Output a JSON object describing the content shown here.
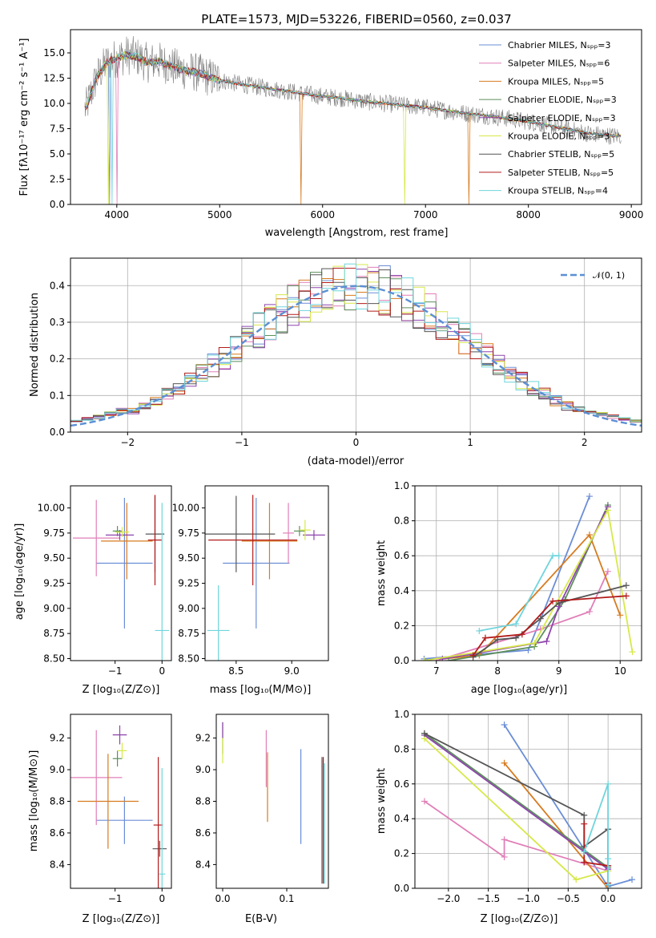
{
  "palette": [
    "#6b8ed6",
    "#e07fb8",
    "#d77b1f",
    "#5c8f5c",
    "#8e44ad",
    "#d7e84a",
    "#555555",
    "#b31b1b",
    "#6fd5dc"
  ],
  "chart_data": [
    {
      "id": "spectrum",
      "type": "line",
      "title": "PLATE=1573, MJD=53226, FIBERID=0560, z=0.037",
      "xlabel": "wavelength [Angstrom, rest frame]",
      "ylabel": "Flux [fλ10⁻¹⁷ erg cm⁻² s⁻¹ A⁻¹]",
      "xlim": [
        3550,
        9100
      ],
      "ylim": [
        0,
        17.3
      ],
      "xticks": [
        "4000",
        "5000",
        "6000",
        "7000",
        "8000",
        "9000"
      ],
      "yticks": [
        "0.0",
        "2.5",
        "5.0",
        "7.5",
        "10.0",
        "12.5",
        "15.0"
      ],
      "data_x": [
        3700,
        3800,
        3900,
        4000,
        4100,
        4200,
        4300,
        4400,
        4500,
        4600,
        4700,
        4800,
        4900,
        5000,
        5200,
        5400,
        5600,
        5800,
        6000,
        6200,
        6400,
        6600,
        6800,
        7000,
        7200,
        7400,
        7600,
        7800,
        8000,
        8200,
        8400,
        8600,
        8800
      ],
      "data_y": [
        9.5,
        12.5,
        14.0,
        14.5,
        14.8,
        14.6,
        14.0,
        14.2,
        13.8,
        13.4,
        13.2,
        13.0,
        12.6,
        12.3,
        11.9,
        11.6,
        11.3,
        11.0,
        10.7,
        10.5,
        10.2,
        10.0,
        9.8,
        9.6,
        9.3,
        9.0,
        8.8,
        8.5,
        8.2,
        7.8,
        7.4,
        7.0,
        6.8
      ],
      "series": [
        {
          "name": "Chabrier MILES, Nₛₚₚ=3"
        },
        {
          "name": "Salpeter MILES, Nₛₚₚ=6"
        },
        {
          "name": "Kroupa MILES, Nₛₚₚ=5"
        },
        {
          "name": "Chabrier ELODIE, Nₛₚₚ=3"
        },
        {
          "name": "Salpeter ELODIE, Nₛₚₚ=3"
        },
        {
          "name": "Kroupa ELODIE, Nₛₚₚ=3"
        },
        {
          "name": "Chabrier STELIB, Nₛₚₚ=5"
        },
        {
          "name": "Salpeter STELIB, Nₛₚₚ=5"
        },
        {
          "name": "Kroupa STELIB, Nₛₚₚ=4"
        }
      ],
      "legend": "top-right"
    },
    {
      "id": "residuals",
      "type": "line",
      "xlabel": "(data-model)/error",
      "ylabel": "Normed distribution",
      "xlim": [
        -2.5,
        2.5
      ],
      "ylim": [
        0,
        0.475
      ],
      "xticks": [
        "−2",
        "−1",
        "0",
        "1",
        "2"
      ],
      "yticks": [
        "0.0",
        "0.1",
        "0.2",
        "0.3",
        "0.4"
      ],
      "legend_entry": "𝒩(0, 1)",
      "gaussian": {
        "mu": 0,
        "sigma": 1
      },
      "grid": true
    },
    {
      "id": "age_vs_Z",
      "type": "scatter",
      "xlabel": "Z [log₁₀(Z/Z⊙)]",
      "ylabel": "age  [log₁₀(age/yr)]",
      "xlim": [
        -1.95,
        0.2
      ],
      "ylim": [
        8.48,
        10.22
      ],
      "xticks": [
        "−1",
        "0"
      ],
      "yticks": [
        "8.50",
        "8.75",
        "9.00",
        "9.25",
        "9.50",
        "9.75",
        "10.00"
      ],
      "points": [
        {
          "x": -0.8,
          "y": 9.45,
          "xerr": 0.6,
          "yerr": 0.65
        },
        {
          "x": -1.4,
          "y": 9.7,
          "xerr": 0.5,
          "yerr": 0.38
        },
        {
          "x": -0.75,
          "y": 9.67,
          "xerr": 0.55,
          "yerr": 0.38
        },
        {
          "x": -0.95,
          "y": 9.77,
          "xerr": 0.1,
          "yerr": 0.05
        },
        {
          "x": -0.9,
          "y": 9.73,
          "xerr": 0.3,
          "yerr": 0.05
        },
        {
          "x": -0.85,
          "y": 9.76,
          "xerr": 0.15,
          "yerr": 0.05
        },
        {
          "x": -0.15,
          "y": 9.74,
          "xerr": 0.2,
          "yerr": 0.38
        },
        {
          "x": -0.15,
          "y": 9.68,
          "xerr": 0.15,
          "yerr": 0.45
        },
        {
          "x": 0.0,
          "y": 8.78,
          "xerr": 0.15,
          "yerr": 1.27
        }
      ]
    },
    {
      "id": "age_vs_mass",
      "type": "scatter",
      "xlabel": "mass [log₁₀(M/M⊙)]",
      "ylabel": "",
      "xlim": [
        8.22,
        9.33
      ],
      "ylim": [
        8.48,
        10.22
      ],
      "xticks": [
        "8.5",
        "9.0"
      ],
      "yticks": [
        "8.50",
        "8.75",
        "9.00",
        "9.25",
        "9.50",
        "9.75",
        "10.00"
      ],
      "points": [
        {
          "x": 8.68,
          "y": 9.45,
          "xerr": 0.3,
          "yerr": 0.65
        },
        {
          "x": 8.97,
          "y": 9.75,
          "xerr": 0.05,
          "yerr": 0.3
        },
        {
          "x": 8.8,
          "y": 9.67,
          "xerr": 0.25,
          "yerr": 0.38
        },
        {
          "x": 9.07,
          "y": 9.77,
          "xerr": 0.05,
          "yerr": 0.05
        },
        {
          "x": 9.2,
          "y": 9.73,
          "xerr": 0.1,
          "yerr": 0.05
        },
        {
          "x": 9.12,
          "y": 9.78,
          "xerr": 0.05,
          "yerr": 0.1
        },
        {
          "x": 8.5,
          "y": 9.74,
          "xerr": 0.35,
          "yerr": 0.38
        },
        {
          "x": 8.65,
          "y": 9.68,
          "xerr": 0.4,
          "yerr": 0.45
        },
        {
          "x": 8.34,
          "y": 8.78,
          "xerr": 0.1,
          "yerr": 0.45
        }
      ]
    },
    {
      "id": "weight_vs_age",
      "type": "line",
      "xlabel": "age  [log₁₀(age/yr)]",
      "ylabel": "mass weight",
      "xlim": [
        6.65,
        10.35
      ],
      "ylim": [
        0,
        1
      ],
      "xticks": [
        "7",
        "8",
        "9",
        "10"
      ],
      "yticks": [
        "0.0",
        "0.2",
        "0.4",
        "0.6",
        "0.8",
        "1.0"
      ],
      "grid": true,
      "series": [
        {
          "x": [
            6.8,
            8.5,
            9.5
          ],
          "y": [
            0.01,
            0.06,
            0.94
          ]
        },
        {
          "x": [
            7.0,
            8.7,
            9.5,
            9.8
          ],
          "y": [
            0.0,
            0.18,
            0.28,
            0.51
          ]
        },
        {
          "x": [
            7.1,
            7.7,
            9.5,
            10.0
          ],
          "y": [
            0.01,
            0.03,
            0.72,
            0.26
          ]
        },
        {
          "x": [
            7.2,
            8.6,
            9.1,
            9.8
          ],
          "y": [
            0.0,
            0.08,
            0.35,
            0.89
          ]
        },
        {
          "x": [
            7.1,
            8.8,
            9.0,
            9.8
          ],
          "y": [
            0.01,
            0.11,
            0.31,
            0.88
          ]
        },
        {
          "x": [
            6.8,
            8.6,
            9.8,
            10.2
          ],
          "y": [
            0.0,
            0.1,
            0.86,
            0.05
          ]
        },
        {
          "x": [
            7.6,
            8.0,
            8.3,
            8.7,
            9.0,
            10.1
          ],
          "y": [
            0.02,
            0.12,
            0.13,
            0.24,
            0.33,
            0.43
          ]
        },
        {
          "x": [
            7.6,
            7.8,
            8.4,
            8.9,
            10.1
          ],
          "y": [
            0.03,
            0.13,
            0.15,
            0.34,
            0.37
          ]
        },
        {
          "x": [
            7.7,
            8.3,
            8.9,
            9.0
          ],
          "y": [
            0.17,
            0.21,
            0.6,
            0.6
          ]
        }
      ]
    },
    {
      "id": "mass_vs_Z",
      "type": "scatter",
      "xlabel": "Z [log₁₀(Z/Z⊙)]",
      "ylabel": "mass [log₁₀(M/M⊙)]",
      "xlim": [
        -1.95,
        0.2
      ],
      "ylim": [
        8.25,
        9.35
      ],
      "xticks": [
        "−1",
        "0"
      ],
      "yticks": [
        "8.4",
        "8.6",
        "8.8",
        "9.0",
        "9.2"
      ],
      "points": [
        {
          "x": -0.8,
          "y": 8.68,
          "xerr": 0.6,
          "yerr": 0.15
        },
        {
          "x": -1.4,
          "y": 8.95,
          "xerr": 0.55,
          "yerr": 0.3
        },
        {
          "x": -1.15,
          "y": 8.8,
          "xerr": 0.65,
          "yerr": 0.3
        },
        {
          "x": -0.95,
          "y": 9.07,
          "xerr": 0.1,
          "yerr": 0.05
        },
        {
          "x": -0.9,
          "y": 9.22,
          "xerr": 0.15,
          "yerr": 0.06
        },
        {
          "x": -0.85,
          "y": 9.12,
          "xerr": 0.1,
          "yerr": 0.05
        },
        {
          "x": -0.05,
          "y": 8.5,
          "xerr": 0.15,
          "yerr": 0.05
        },
        {
          "x": -0.08,
          "y": 8.65,
          "xerr": 0.1,
          "yerr": 0.43
        },
        {
          "x": 0.0,
          "y": 8.34,
          "xerr": 0.07,
          "yerr": 0.67
        }
      ]
    },
    {
      "id": "mass_vs_ebv",
      "type": "scatter",
      "xlabel": "E(B-V)",
      "ylabel": "",
      "xlim": [
        -0.01,
        0.165
      ],
      "ylim": [
        8.25,
        9.35
      ],
      "xticks": [
        "0.0",
        "0.1"
      ],
      "yticks": [
        "8.4",
        "8.6",
        "8.8",
        "9.0",
        "9.2"
      ],
      "points": [
        {
          "x": 0.122,
          "y": 8.83,
          "yerr": 0.3
        },
        {
          "x": 0.068,
          "y": 9.07,
          "yerr": 0.18
        },
        {
          "x": 0.07,
          "y": 8.89,
          "yerr": 0.22
        },
        {
          "x": 0.0,
          "y": 9.2,
          "yerr": 0.1
        },
        {
          "x": 0.0,
          "y": 9.25,
          "yerr": 0.05
        },
        {
          "x": 0.0,
          "y": 9.12,
          "yerr": 0.08
        },
        {
          "x": 0.155,
          "y": 8.68,
          "yerr": 0.4
        },
        {
          "x": 0.157,
          "y": 8.68,
          "yerr": 0.4
        },
        {
          "x": 0.159,
          "y": 8.66,
          "yerr": 0.38
        }
      ]
    },
    {
      "id": "weight_vs_Z",
      "type": "line",
      "xlabel": "Z [log₁₀(Z/Z⊙)]",
      "ylabel": "mass weight",
      "xlim": [
        -2.42,
        0.42
      ],
      "ylim": [
        0,
        1
      ],
      "xticks": [
        "−2.0",
        "−1.5",
        "−1.0",
        "−0.5",
        "0.0"
      ],
      "yticks": [
        "0.0",
        "0.2",
        "0.4",
        "0.6",
        "0.8",
        "1.0"
      ],
      "grid": true,
      "series": [
        {
          "x": [
            -1.3,
            0.0,
            0.3
          ],
          "y": [
            0.94,
            0.01,
            0.05
          ]
        },
        {
          "x": [
            -2.3,
            -1.3,
            -1.3,
            0.0
          ],
          "y": [
            0.5,
            0.18,
            0.28,
            0.1
          ]
        },
        {
          "x": [
            -1.3,
            0.0
          ],
          "y": [
            0.72,
            0.0
          ]
        },
        {
          "x": [
            -2.3,
            0.0
          ],
          "y": [
            0.89,
            0.12
          ]
        },
        {
          "x": [
            -2.3,
            0.0
          ],
          "y": [
            0.88,
            0.11
          ]
        },
        {
          "x": [
            -2.3,
            -0.4,
            0.0
          ],
          "y": [
            0.86,
            0.05,
            0.1
          ]
        },
        {
          "x": [
            -2.3,
            -0.3,
            -0.3,
            0.0,
            0.0
          ],
          "y": [
            0.89,
            0.42,
            0.24,
            0.34,
            0.13
          ]
        },
        {
          "x": [
            -0.3,
            -0.3,
            0.0,
            0.0
          ],
          "y": [
            0.37,
            0.15,
            0.13,
            0.03
          ]
        },
        {
          "x": [
            -0.3,
            0.0,
            0.0,
            0.0
          ],
          "y": [
            0.21,
            0.6,
            0.17,
            0.02
          ]
        }
      ]
    }
  ]
}
